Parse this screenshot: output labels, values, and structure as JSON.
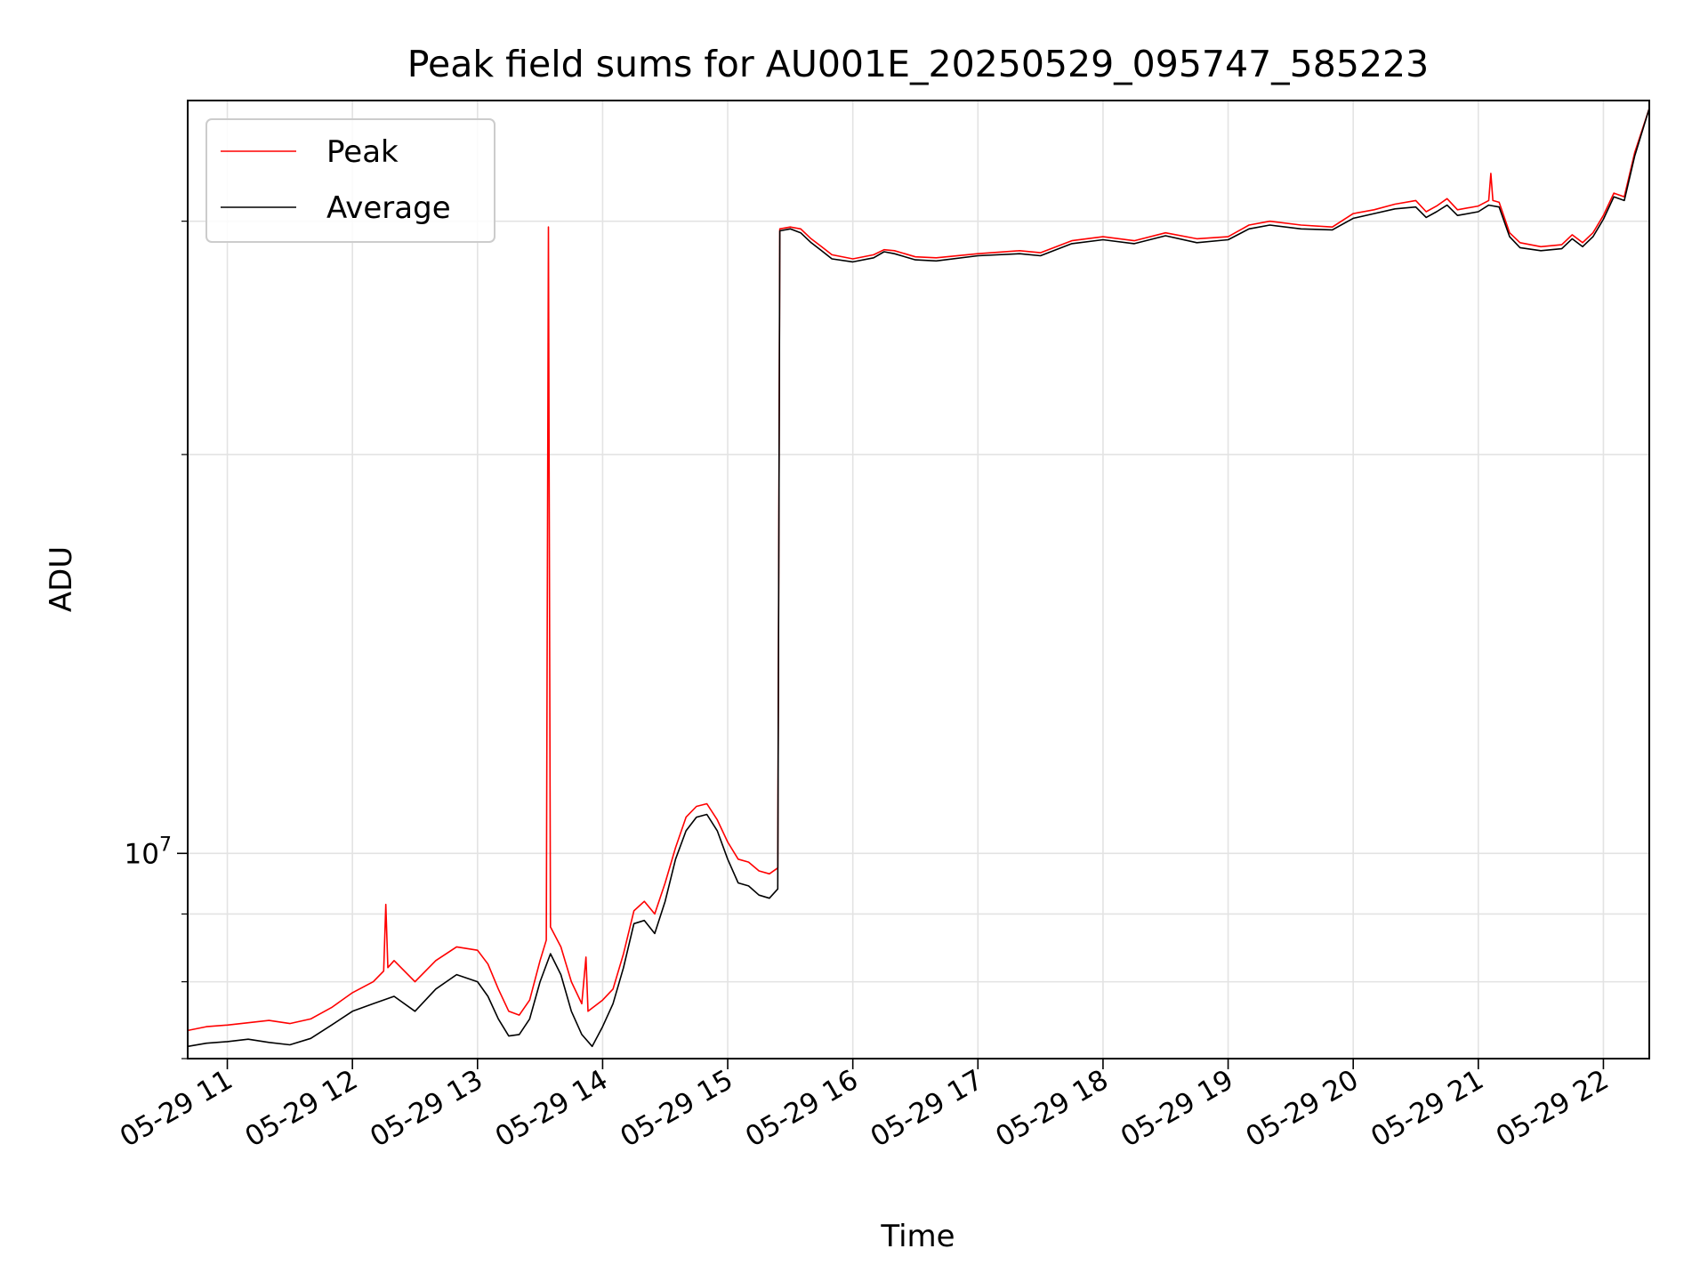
{
  "chart_data": {
    "type": "line",
    "title": "Peak field sums for AU001E_20250529_095747_585223",
    "xlabel": "Time",
    "ylabel": "ADU",
    "yscale": "log",
    "grid": true,
    "legend_position": "top-left",
    "xlim": [
      "2025-05-29 10:41",
      "2025-05-29 22:22"
    ],
    "ylim": [
      7000000,
      37000000
    ],
    "x_ticks": [
      {
        "label": "05-29 11",
        "time": "2025-05-29 11:00"
      },
      {
        "label": "05-29 12",
        "time": "2025-05-29 12:00"
      },
      {
        "label": "05-29 13",
        "time": "2025-05-29 13:00"
      },
      {
        "label": "05-29 14",
        "time": "2025-05-29 14:00"
      },
      {
        "label": "05-29 15",
        "time": "2025-05-29 15:00"
      },
      {
        "label": "05-29 16",
        "time": "2025-05-29 16:00"
      },
      {
        "label": "05-29 17",
        "time": "2025-05-29 17:00"
      },
      {
        "label": "05-29 18",
        "time": "2025-05-29 18:00"
      },
      {
        "label": "05-29 19",
        "time": "2025-05-29 19:00"
      },
      {
        "label": "05-29 20",
        "time": "2025-05-29 20:00"
      },
      {
        "label": "05-29 21",
        "time": "2025-05-29 21:00"
      },
      {
        "label": "05-29 22",
        "time": "2025-05-29 22:00"
      }
    ],
    "y_major_ticks": [
      {
        "value": 10000000,
        "label_base": "10",
        "label_exp": "7"
      }
    ],
    "y_minor_ticks": [
      7000000,
      8000000,
      9000000,
      20000000,
      30000000
    ],
    "series": [
      {
        "name": "Peak",
        "color": "#ff0000",
        "points": [
          [
            "2025-05-29 10:41",
            7350000
          ],
          [
            "2025-05-29 10:50",
            7400000
          ],
          [
            "2025-05-29 11:00",
            7420000
          ],
          [
            "2025-05-29 11:10",
            7450000
          ],
          [
            "2025-05-29 11:20",
            7480000
          ],
          [
            "2025-05-29 11:30",
            7440000
          ],
          [
            "2025-05-29 11:40",
            7500000
          ],
          [
            "2025-05-29 11:50",
            7650000
          ],
          [
            "2025-05-29 12:00",
            7850000
          ],
          [
            "2025-05-29 12:10",
            8000000
          ],
          [
            "2025-05-29 12:15",
            8150000
          ],
          [
            "2025-05-29 12:16",
            9150000
          ],
          [
            "2025-05-29 12:17",
            8200000
          ],
          [
            "2025-05-29 12:20",
            8300000
          ],
          [
            "2025-05-29 12:30",
            8000000
          ],
          [
            "2025-05-29 12:40",
            8300000
          ],
          [
            "2025-05-29 12:50",
            8500000
          ],
          [
            "2025-05-29 13:00",
            8450000
          ],
          [
            "2025-05-29 13:05",
            8250000
          ],
          [
            "2025-05-29 13:10",
            7900000
          ],
          [
            "2025-05-29 13:15",
            7600000
          ],
          [
            "2025-05-29 13:20",
            7550000
          ],
          [
            "2025-05-29 13:25",
            7750000
          ],
          [
            "2025-05-29 13:30",
            8300000
          ],
          [
            "2025-05-29 13:33",
            8600000
          ],
          [
            "2025-05-29 13:34",
            29700000
          ],
          [
            "2025-05-29 13:35",
            8800000
          ],
          [
            "2025-05-29 13:40",
            8500000
          ],
          [
            "2025-05-29 13:45",
            8000000
          ],
          [
            "2025-05-29 13:50",
            7700000
          ],
          [
            "2025-05-29 13:52",
            8350000
          ],
          [
            "2025-05-29 13:53",
            7600000
          ],
          [
            "2025-05-29 14:00",
            7750000
          ],
          [
            "2025-05-29 14:05",
            7900000
          ],
          [
            "2025-05-29 14:10",
            8400000
          ],
          [
            "2025-05-29 14:15",
            9050000
          ],
          [
            "2025-05-29 14:20",
            9200000
          ],
          [
            "2025-05-29 14:25",
            9000000
          ],
          [
            "2025-05-29 14:30",
            9500000
          ],
          [
            "2025-05-29 14:35",
            10100000
          ],
          [
            "2025-05-29 14:40",
            10650000
          ],
          [
            "2025-05-29 14:45",
            10850000
          ],
          [
            "2025-05-29 14:50",
            10900000
          ],
          [
            "2025-05-29 14:55",
            10600000
          ],
          [
            "2025-05-29 15:00",
            10200000
          ],
          [
            "2025-05-29 15:05",
            9900000
          ],
          [
            "2025-05-29 15:10",
            9850000
          ],
          [
            "2025-05-29 15:15",
            9700000
          ],
          [
            "2025-05-29 15:20",
            9650000
          ],
          [
            "2025-05-29 15:24",
            9750000
          ],
          [
            "2025-05-29 15:25",
            29600000
          ],
          [
            "2025-05-29 15:30",
            29700000
          ],
          [
            "2025-05-29 15:35",
            29600000
          ],
          [
            "2025-05-29 15:40",
            29100000
          ],
          [
            "2025-05-29 15:45",
            28700000
          ],
          [
            "2025-05-29 15:50",
            28300000
          ],
          [
            "2025-05-29 16:00",
            28100000
          ],
          [
            "2025-05-29 16:10",
            28300000
          ],
          [
            "2025-05-29 16:15",
            28550000
          ],
          [
            "2025-05-29 16:20",
            28500000
          ],
          [
            "2025-05-29 16:30",
            28200000
          ],
          [
            "2025-05-29 16:40",
            28150000
          ],
          [
            "2025-05-29 17:00",
            28350000
          ],
          [
            "2025-05-29 17:20",
            28500000
          ],
          [
            "2025-05-29 17:30",
            28400000
          ],
          [
            "2025-05-29 17:45",
            29000000
          ],
          [
            "2025-05-29 18:00",
            29200000
          ],
          [
            "2025-05-29 18:15",
            29000000
          ],
          [
            "2025-05-29 18:30",
            29400000
          ],
          [
            "2025-05-29 18:45",
            29100000
          ],
          [
            "2025-05-29 19:00",
            29200000
          ],
          [
            "2025-05-29 19:10",
            29800000
          ],
          [
            "2025-05-29 19:20",
            30000000
          ],
          [
            "2025-05-29 19:35",
            29800000
          ],
          [
            "2025-05-29 19:50",
            29700000
          ],
          [
            "2025-05-29 20:00",
            30400000
          ],
          [
            "2025-05-29 20:10",
            30600000
          ],
          [
            "2025-05-29 20:20",
            30900000
          ],
          [
            "2025-05-29 20:30",
            31100000
          ],
          [
            "2025-05-29 20:35",
            30500000
          ],
          [
            "2025-05-29 20:40",
            30800000
          ],
          [
            "2025-05-29 20:45",
            31200000
          ],
          [
            "2025-05-29 20:50",
            30600000
          ],
          [
            "2025-05-29 21:00",
            30800000
          ],
          [
            "2025-05-29 21:05",
            31100000
          ],
          [
            "2025-05-29 21:06",
            32600000
          ],
          [
            "2025-05-29 21:07",
            31100000
          ],
          [
            "2025-05-29 21:10",
            31000000
          ],
          [
            "2025-05-29 21:15",
            29400000
          ],
          [
            "2025-05-29 21:20",
            28900000
          ],
          [
            "2025-05-29 21:30",
            28700000
          ],
          [
            "2025-05-29 21:40",
            28800000
          ],
          [
            "2025-05-29 21:45",
            29300000
          ],
          [
            "2025-05-29 21:50",
            28900000
          ],
          [
            "2025-05-29 21:55",
            29400000
          ],
          [
            "2025-05-29 22:00",
            30300000
          ],
          [
            "2025-05-29 22:05",
            31500000
          ],
          [
            "2025-05-29 22:10",
            31300000
          ],
          [
            "2025-05-29 22:15",
            33800000
          ],
          [
            "2025-05-29 22:22",
            36500000
          ]
        ]
      },
      {
        "name": "Average",
        "color": "#000000",
        "points": [
          [
            "2025-05-29 10:41",
            7150000
          ],
          [
            "2025-05-29 10:50",
            7190000
          ],
          [
            "2025-05-29 11:00",
            7210000
          ],
          [
            "2025-05-29 11:10",
            7240000
          ],
          [
            "2025-05-29 11:20",
            7200000
          ],
          [
            "2025-05-29 11:30",
            7170000
          ],
          [
            "2025-05-29 11:40",
            7250000
          ],
          [
            "2025-05-29 11:50",
            7420000
          ],
          [
            "2025-05-29 12:00",
            7600000
          ],
          [
            "2025-05-29 12:10",
            7700000
          ],
          [
            "2025-05-29 12:20",
            7800000
          ],
          [
            "2025-05-29 12:30",
            7600000
          ],
          [
            "2025-05-29 12:40",
            7900000
          ],
          [
            "2025-05-29 12:50",
            8100000
          ],
          [
            "2025-05-29 13:00",
            8000000
          ],
          [
            "2025-05-29 13:05",
            7800000
          ],
          [
            "2025-05-29 13:10",
            7500000
          ],
          [
            "2025-05-29 13:15",
            7280000
          ],
          [
            "2025-05-29 13:20",
            7300000
          ],
          [
            "2025-05-29 13:25",
            7500000
          ],
          [
            "2025-05-29 13:30",
            8000000
          ],
          [
            "2025-05-29 13:35",
            8400000
          ],
          [
            "2025-05-29 13:40",
            8100000
          ],
          [
            "2025-05-29 13:45",
            7600000
          ],
          [
            "2025-05-29 13:50",
            7300000
          ],
          [
            "2025-05-29 13:55",
            7150000
          ],
          [
            "2025-05-29 14:00",
            7400000
          ],
          [
            "2025-05-29 14:05",
            7700000
          ],
          [
            "2025-05-29 14:10",
            8200000
          ],
          [
            "2025-05-29 14:15",
            8850000
          ],
          [
            "2025-05-29 14:20",
            8900000
          ],
          [
            "2025-05-29 14:25",
            8700000
          ],
          [
            "2025-05-29 14:30",
            9200000
          ],
          [
            "2025-05-29 14:35",
            9900000
          ],
          [
            "2025-05-29 14:40",
            10400000
          ],
          [
            "2025-05-29 14:45",
            10650000
          ],
          [
            "2025-05-29 14:50",
            10700000
          ],
          [
            "2025-05-29 14:55",
            10400000
          ],
          [
            "2025-05-29 15:00",
            9900000
          ],
          [
            "2025-05-29 15:05",
            9500000
          ],
          [
            "2025-05-29 15:10",
            9450000
          ],
          [
            "2025-05-29 15:15",
            9300000
          ],
          [
            "2025-05-29 15:20",
            9250000
          ],
          [
            "2025-05-29 15:24",
            9400000
          ],
          [
            "2025-05-29 15:25",
            29500000
          ],
          [
            "2025-05-29 15:30",
            29600000
          ],
          [
            "2025-05-29 15:35",
            29400000
          ],
          [
            "2025-05-29 15:40",
            28900000
          ],
          [
            "2025-05-29 15:45",
            28500000
          ],
          [
            "2025-05-29 15:50",
            28100000
          ],
          [
            "2025-05-29 16:00",
            27950000
          ],
          [
            "2025-05-29 16:10",
            28150000
          ],
          [
            "2025-05-29 16:15",
            28450000
          ],
          [
            "2025-05-29 16:20",
            28350000
          ],
          [
            "2025-05-29 16:30",
            28050000
          ],
          [
            "2025-05-29 16:40",
            28000000
          ],
          [
            "2025-05-29 17:00",
            28250000
          ],
          [
            "2025-05-29 17:20",
            28350000
          ],
          [
            "2025-05-29 17:30",
            28250000
          ],
          [
            "2025-05-29 17:45",
            28850000
          ],
          [
            "2025-05-29 18:00",
            29050000
          ],
          [
            "2025-05-29 18:15",
            28850000
          ],
          [
            "2025-05-29 18:30",
            29250000
          ],
          [
            "2025-05-29 18:45",
            28900000
          ],
          [
            "2025-05-29 19:00",
            29050000
          ],
          [
            "2025-05-29 19:10",
            29600000
          ],
          [
            "2025-05-29 19:20",
            29800000
          ],
          [
            "2025-05-29 19:35",
            29600000
          ],
          [
            "2025-05-29 19:50",
            29550000
          ],
          [
            "2025-05-29 20:00",
            30150000
          ],
          [
            "2025-05-29 20:10",
            30400000
          ],
          [
            "2025-05-29 20:20",
            30650000
          ],
          [
            "2025-05-29 20:30",
            30750000
          ],
          [
            "2025-05-29 20:35",
            30200000
          ],
          [
            "2025-05-29 20:40",
            30500000
          ],
          [
            "2025-05-29 20:45",
            30850000
          ],
          [
            "2025-05-29 20:50",
            30300000
          ],
          [
            "2025-05-29 21:00",
            30500000
          ],
          [
            "2025-05-29 21:05",
            30850000
          ],
          [
            "2025-05-29 21:10",
            30750000
          ],
          [
            "2025-05-29 21:15",
            29200000
          ],
          [
            "2025-05-29 21:20",
            28650000
          ],
          [
            "2025-05-29 21:30",
            28500000
          ],
          [
            "2025-05-29 21:40",
            28600000
          ],
          [
            "2025-05-29 21:45",
            29100000
          ],
          [
            "2025-05-29 21:50",
            28700000
          ],
          [
            "2025-05-29 21:55",
            29200000
          ],
          [
            "2025-05-29 22:00",
            30100000
          ],
          [
            "2025-05-29 22:05",
            31300000
          ],
          [
            "2025-05-29 22:10",
            31100000
          ],
          [
            "2025-05-29 22:15",
            33600000
          ],
          [
            "2025-05-29 22:22",
            36500000
          ]
        ]
      }
    ]
  }
}
